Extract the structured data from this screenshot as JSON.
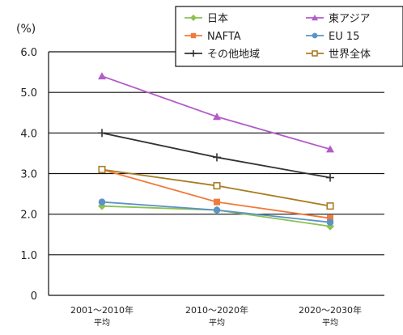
{
  "chart_data": {
    "type": "line",
    "unit_label": "(%)",
    "categories": [
      [
        "2001～2010年",
        "平均"
      ],
      [
        "2010～2020年",
        "平均"
      ],
      [
        "2020～2030年",
        "平均"
      ]
    ],
    "ylim": [
      0,
      6
    ],
    "yticks": [
      "0",
      "1.0",
      "2.0",
      "3.0",
      "4.0",
      "5.0",
      "6.0"
    ],
    "grid": true,
    "legend_position": "top-right",
    "series": [
      {
        "name": "日本",
        "color": "#8cc152",
        "marker": "diamond",
        "values": [
          2.2,
          2.1,
          1.7
        ]
      },
      {
        "name": "東アジア",
        "color": "#b35cc9",
        "marker": "triangle",
        "values": [
          5.4,
          4.4,
          3.6
        ]
      },
      {
        "name": "NAFTA",
        "color": "#f07a3c",
        "marker": "square",
        "values": [
          3.1,
          2.3,
          1.9
        ]
      },
      {
        "name": "EU 15",
        "color": "#5b93c6",
        "marker": "circle",
        "values": [
          2.3,
          2.1,
          1.8
        ]
      },
      {
        "name": "その他地域",
        "color": "#333333",
        "marker": "cross",
        "values": [
          4.0,
          3.4,
          2.9
        ]
      },
      {
        "name": "世界全体",
        "color": "#a87d24",
        "marker": "square-open",
        "values": [
          3.1,
          2.7,
          2.2
        ]
      }
    ]
  }
}
